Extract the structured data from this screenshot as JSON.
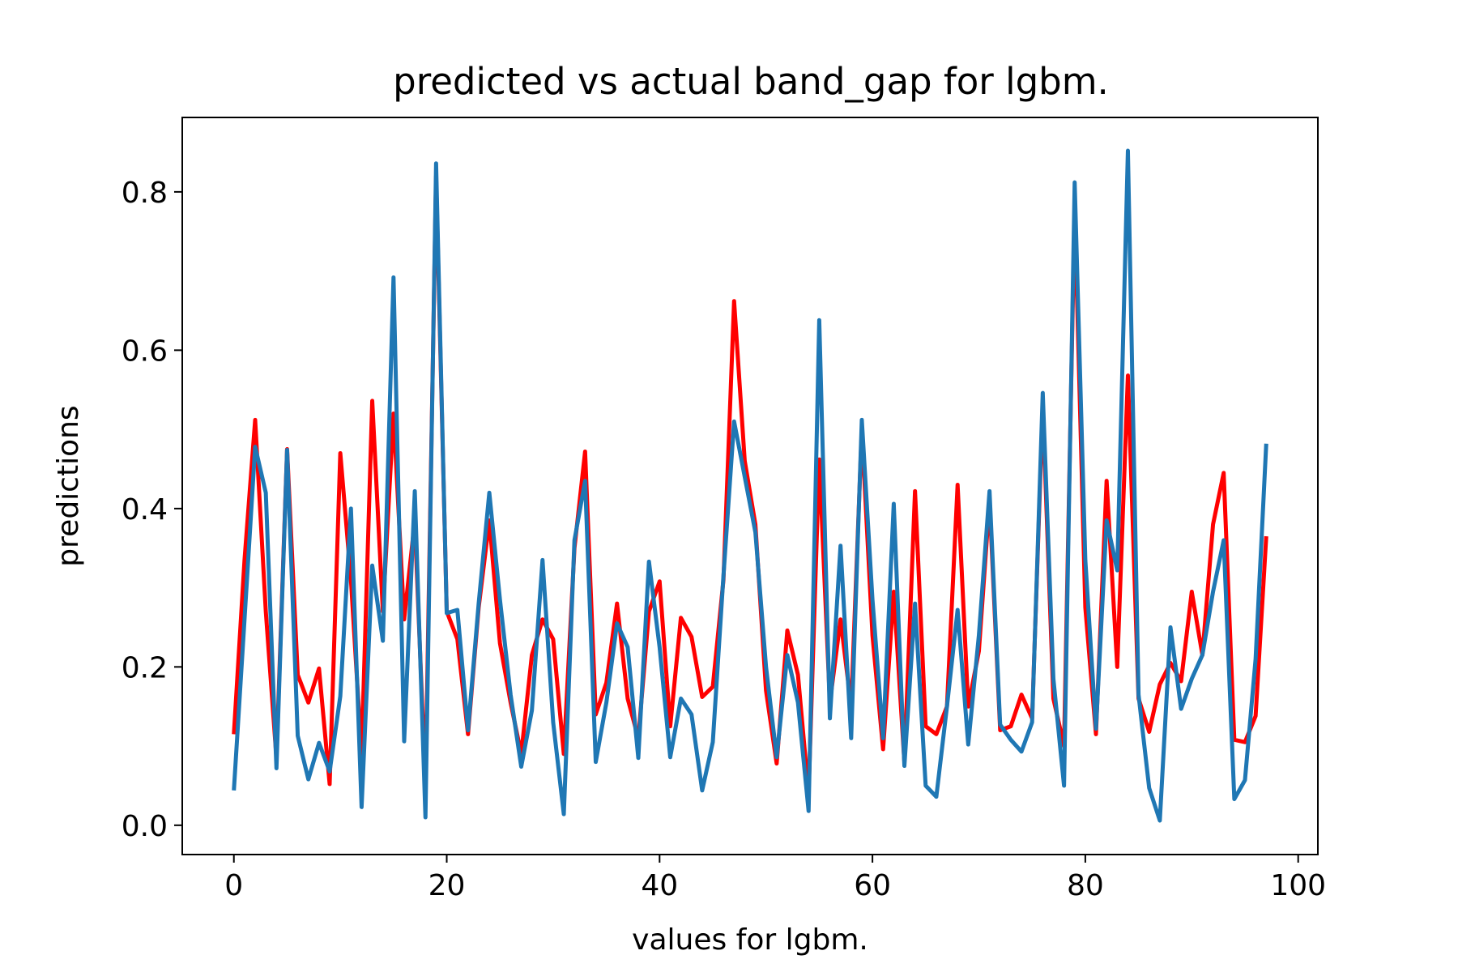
{
  "chart_data": {
    "type": "line",
    "title": "predicted vs actual band_gap for lgbm.",
    "xlabel": "values for lgbm.",
    "ylabel": "predictions",
    "xlim": [
      -4.85,
      101.85
    ],
    "ylim": [
      -0.037,
      0.894
    ],
    "xticks": [
      0,
      20,
      40,
      60,
      80,
      100
    ],
    "yticks": [
      0.0,
      0.2,
      0.4,
      0.6,
      0.8
    ],
    "xtick_labels": [
      "0",
      "20",
      "40",
      "60",
      "80",
      "100"
    ],
    "ytick_labels": [
      "0.0",
      "0.2",
      "0.4",
      "0.6",
      "0.8"
    ],
    "grid": false,
    "legend": "none",
    "series": [
      {
        "color": "#ff0000",
        "x": [
          0,
          1,
          2,
          3,
          4,
          5,
          6,
          7,
          8,
          9,
          10,
          11,
          12,
          13,
          14,
          15,
          16,
          17,
          18,
          19,
          20,
          21,
          22,
          23,
          24,
          25,
          26,
          27,
          28,
          29,
          30,
          31,
          32,
          33,
          34,
          35,
          36,
          37,
          38,
          39,
          40,
          41,
          42,
          43,
          44,
          45,
          46,
          47,
          48,
          49,
          50,
          51,
          52,
          53,
          54,
          55,
          56,
          57,
          58,
          59,
          60,
          61,
          62,
          63,
          64,
          65,
          66,
          67,
          68,
          69,
          70,
          71,
          72,
          73,
          74,
          75,
          76,
          77,
          78,
          79,
          80,
          81,
          82,
          83,
          84,
          85,
          86,
          87,
          88,
          89,
          90,
          91,
          92,
          93,
          94,
          95,
          96,
          97
        ],
        "y": [
          0.115,
          0.335,
          0.512,
          0.27,
          0.085,
          0.475,
          0.19,
          0.155,
          0.198,
          0.052,
          0.47,
          0.31,
          0.09,
          0.536,
          0.27,
          0.52,
          0.26,
          0.385,
          0.05,
          0.82,
          0.27,
          0.235,
          0.115,
          0.275,
          0.385,
          0.23,
          0.155,
          0.09,
          0.215,
          0.26,
          0.235,
          0.09,
          0.35,
          0.472,
          0.14,
          0.18,
          0.28,
          0.16,
          0.11,
          0.27,
          0.308,
          0.125,
          0.262,
          0.238,
          0.162,
          0.175,
          0.31,
          0.662,
          0.46,
          0.38,
          0.17,
          0.078,
          0.246,
          0.19,
          0.04,
          0.462,
          0.155,
          0.26,
          0.15,
          0.5,
          0.24,
          0.096,
          0.295,
          0.08,
          0.422,
          0.125,
          0.115,
          0.15,
          0.43,
          0.15,
          0.22,
          0.41,
          0.12,
          0.125,
          0.165,
          0.135,
          0.53,
          0.16,
          0.1,
          0.78,
          0.275,
          0.115,
          0.435,
          0.2,
          0.568,
          0.16,
          0.118,
          0.178,
          0.205,
          0.182,
          0.295,
          0.215,
          0.38,
          0.445,
          0.108,
          0.105,
          0.138,
          0.365
        ]
      },
      {
        "color": "#1f77b4",
        "x": [
          0,
          1,
          2,
          3,
          4,
          5,
          6,
          7,
          8,
          9,
          10,
          11,
          12,
          13,
          14,
          15,
          16,
          17,
          18,
          19,
          20,
          21,
          22,
          23,
          24,
          25,
          26,
          27,
          28,
          29,
          30,
          31,
          32,
          33,
          34,
          35,
          36,
          37,
          38,
          39,
          40,
          41,
          42,
          43,
          44,
          45,
          46,
          47,
          48,
          49,
          50,
          51,
          52,
          53,
          54,
          55,
          56,
          57,
          58,
          59,
          60,
          61,
          62,
          63,
          64,
          65,
          66,
          67,
          68,
          69,
          70,
          71,
          72,
          73,
          74,
          75,
          76,
          77,
          78,
          79,
          80,
          81,
          82,
          83,
          84,
          85,
          86,
          87,
          88,
          89,
          90,
          91,
          92,
          93,
          94,
          95,
          96,
          97
        ],
        "y": [
          0.044,
          0.26,
          0.478,
          0.42,
          0.072,
          0.474,
          0.113,
          0.058,
          0.104,
          0.068,
          0.163,
          0.4,
          0.023,
          0.328,
          0.233,
          0.692,
          0.106,
          0.422,
          0.01,
          0.836,
          0.268,
          0.272,
          0.12,
          0.28,
          0.42,
          0.285,
          0.165,
          0.074,
          0.145,
          0.335,
          0.13,
          0.014,
          0.36,
          0.435,
          0.08,
          0.155,
          0.255,
          0.225,
          0.085,
          0.333,
          0.225,
          0.086,
          0.16,
          0.14,
          0.044,
          0.105,
          0.315,
          0.51,
          0.44,
          0.37,
          0.2,
          0.086,
          0.215,
          0.155,
          0.018,
          0.638,
          0.135,
          0.353,
          0.11,
          0.512,
          0.285,
          0.11,
          0.406,
          0.075,
          0.28,
          0.05,
          0.036,
          0.15,
          0.272,
          0.102,
          0.24,
          0.422,
          0.127,
          0.108,
          0.093,
          0.13,
          0.546,
          0.185,
          0.05,
          0.812,
          0.335,
          0.122,
          0.385,
          0.322,
          0.852,
          0.165,
          0.047,
          0.006,
          0.25,
          0.147,
          0.185,
          0.215,
          0.295,
          0.36,
          0.033,
          0.057,
          0.21,
          0.482
        ]
      }
    ]
  }
}
